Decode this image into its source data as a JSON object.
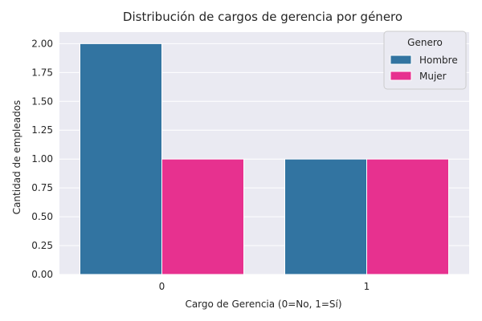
{
  "chart_data": {
    "type": "bar",
    "title": "Distribución de cargos de gerencia por género",
    "xlabel": "Cargo de Gerencia (0=No, 1=Sí)",
    "ylabel": "Cantidad de empleados",
    "categories": [
      "0",
      "1"
    ],
    "series": [
      {
        "name": "Hombre",
        "color": "#3274a1",
        "values": [
          2,
          1
        ]
      },
      {
        "name": "Mujer",
        "color": "#e7318f",
        "values": [
          1,
          1
        ]
      }
    ],
    "ylim": [
      0,
      2.1
    ],
    "yticks": [
      0.0,
      0.25,
      0.5,
      0.75,
      1.0,
      1.25,
      1.5,
      1.75,
      2.0
    ],
    "ytick_labels": [
      "0.00",
      "0.25",
      "0.50",
      "0.75",
      "1.00",
      "1.25",
      "1.50",
      "1.75",
      "2.00"
    ],
    "grid": true,
    "legend": {
      "title": "Genero",
      "placement": "top-right"
    },
    "colors": {
      "plot_background": "#eaeaf2",
      "grid": "#ffffff"
    }
  }
}
